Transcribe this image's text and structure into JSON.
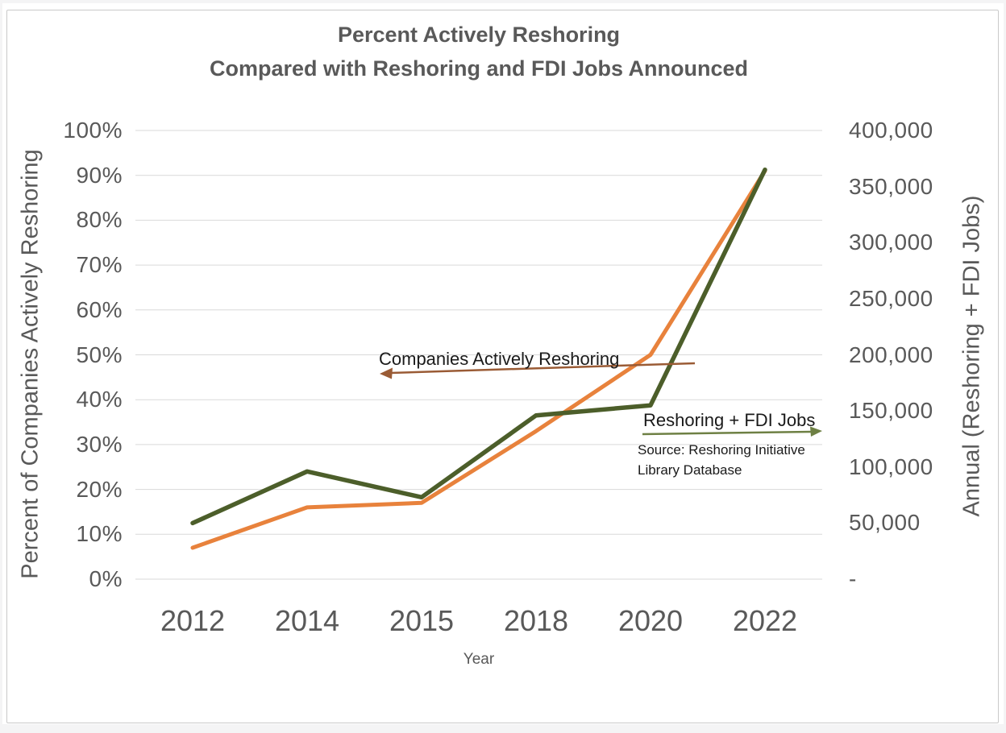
{
  "window": {
    "background": "#ffffff",
    "frame_color": "#f4f4f5",
    "card_border_color": "#c9c9c9"
  },
  "chart_data": {
    "type": "line",
    "title_line1": "Percent Actively Reshoring",
    "title_line2": "Compared with Reshoring and FDI Jobs Announced",
    "xlabel": "Year",
    "ylabel_left": "Percent of Companies Actively Reshoring",
    "ylabel_right": "Annual (Reshoring + FDI Jobs)",
    "categories": [
      "2012",
      "2014",
      "2015",
      "2018",
      "2020",
      "2022"
    ],
    "series": [
      {
        "name": "Companies Actively Reshoring",
        "axis": "left",
        "color": "#E8823C",
        "stroke_width": 5,
        "values": [
          7,
          16,
          17,
          33,
          50,
          91
        ],
        "unit": "percent"
      },
      {
        "name": "Reshoring + FDI Jobs",
        "axis": "right",
        "color": "#4C5E2A",
        "stroke_width": 5.5,
        "values": [
          50000,
          96000,
          73000,
          146000,
          155000,
          365000
        ],
        "unit": "jobs"
      }
    ],
    "y_left": {
      "min": 0,
      "max": 100,
      "tick_step": 10,
      "tick_labels": [
        "100%",
        "90%",
        "80%",
        "70%",
        "60%",
        "50%",
        "40%",
        "30%",
        "20%",
        "10%",
        "0%"
      ]
    },
    "y_right": {
      "min": 0,
      "max": 400000,
      "tick_step": 50000,
      "tick_labels": [
        "400,000",
        "350,000",
        "300,000",
        "250,000",
        "200,000",
        "150,000",
        "100,000",
        "50,000",
        "-"
      ]
    },
    "grid": "horizontal",
    "gridline_color": "#d9d9d9",
    "legend_position": "none (inline arrow annotations)"
  },
  "annotations": {
    "series1_label": "Companies Actively Reshoring",
    "series1_arrow_color": "#9A5B35",
    "series1_arrow_direction": "left",
    "series2_label": "Reshoring + FDI Jobs",
    "series2_arrow_color": "#6E8044",
    "series2_arrow_direction": "right",
    "source_line1": "Source:  Reshoring Initiative",
    "source_line2": "Library Database"
  }
}
